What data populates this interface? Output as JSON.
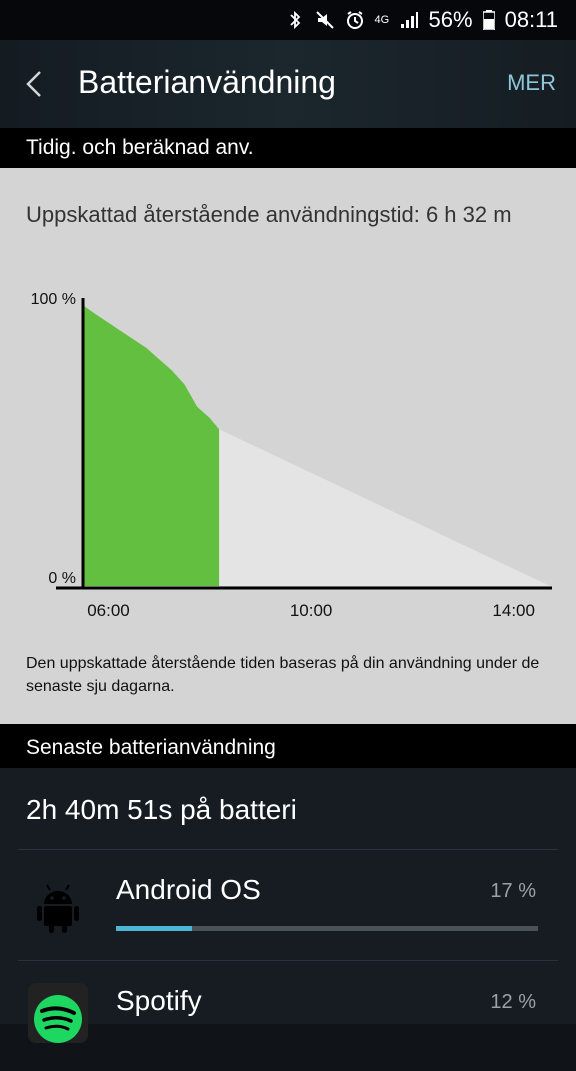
{
  "status_bar": {
    "battery": "56%",
    "time": "08:11",
    "network": "4G",
    "icons": [
      "bluetooth-icon",
      "mute-icon",
      "alarm-icon",
      "lte-icon",
      "signal-icon",
      "battery-icon"
    ]
  },
  "app_bar": {
    "title": "Batterianvändning",
    "menu_label": "MER",
    "back_icon": "chevron-left-icon"
  },
  "section_usage": {
    "header": "Tidig. och beräknad anv.",
    "estimate": "Uppskattad återstående användningstid: 6 h 32 m",
    "note": "Den uppskattade återstående tiden baseras på din användning under de senaste sju dagarna."
  },
  "chart_data": {
    "type": "area",
    "ytick_labels": [
      "100 %",
      "0 %"
    ],
    "xtick_labels": [
      "06:00",
      "10:00",
      "14:00"
    ],
    "ylim": [
      0,
      100
    ],
    "xlim": [
      "05:31",
      "14:43"
    ],
    "series": [
      {
        "kind": "actual",
        "x": [
          "05:31",
          "05:45",
          "06:00",
          "06:15",
          "06:30",
          "06:45",
          "07:00",
          "07:15",
          "07:30",
          "07:45",
          "08:00",
          "08:11"
        ],
        "values": [
          100,
          97,
          94,
          91,
          88,
          85,
          81,
          77,
          72,
          64,
          60,
          56
        ]
      },
      {
        "kind": "estimated",
        "x": [
          "08:11",
          "14:43"
        ],
        "values": [
          56,
          0
        ]
      }
    ],
    "colors": {
      "actual": "#62bf3f",
      "estimated": "#e4e4e4"
    },
    "grid": false
  },
  "section_recent": {
    "header": "Senaste batterianvändning",
    "on_battery": "2h 40m 51s på batteri",
    "apps": [
      {
        "name": "Android OS",
        "percent": "17 %",
        "bar_fraction": 0.18,
        "icon": "android-icon"
      },
      {
        "name": "Spotify",
        "percent": "12 %",
        "bar_fraction": 0.13,
        "icon": "spotify-icon"
      }
    ]
  }
}
